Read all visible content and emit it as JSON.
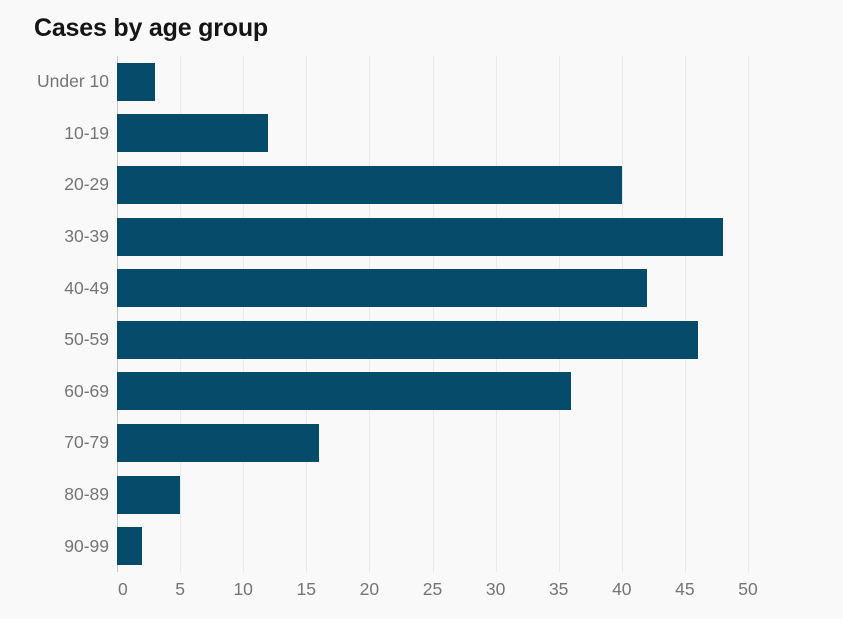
{
  "title": "Cases by age group",
  "colors": {
    "background": "#f9f9f9",
    "bar": "#074b6b",
    "grid_line": "#e9e9e9",
    "zero_axis_line": "#c7c7c7",
    "axis_label": "#757575",
    "title_text": "#151515"
  },
  "chart_data": {
    "type": "bar",
    "orientation": "horizontal",
    "title": "Cases by age group",
    "xlabel": "",
    "ylabel": "",
    "categories": [
      "Under 10",
      "10-19",
      "20-29",
      "30-39",
      "40-49",
      "50-59",
      "60-69",
      "70-79",
      "80-89",
      "90-99"
    ],
    "values": [
      3,
      12,
      40,
      48,
      42,
      46,
      36,
      16,
      5,
      2
    ],
    "xlim": [
      0,
      50
    ],
    "xticks": [
      0,
      5,
      10,
      15,
      20,
      25,
      30,
      35,
      40,
      45,
      50
    ],
    "grid": "vertical",
    "legend": "none"
  }
}
